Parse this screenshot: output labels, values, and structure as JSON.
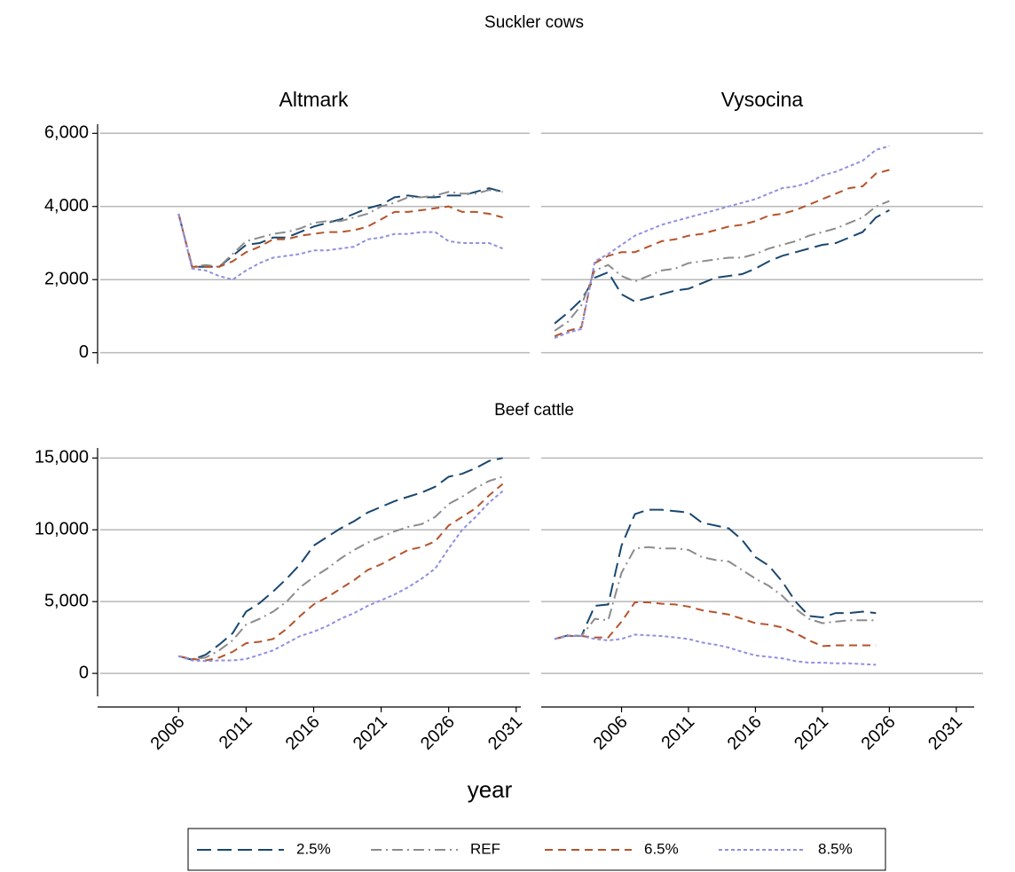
{
  "figure": {
    "rows": [
      "Suckler cows",
      "Beef cattle"
    ],
    "xlabel": "year",
    "legend_position": "bottom"
  },
  "chart_data": [
    {
      "type": "line",
      "title": "Altmark",
      "y_axis": true,
      "x_axis": false,
      "x": [
        2006,
        2007,
        2008,
        2009,
        2010,
        2011,
        2012,
        2013,
        2014,
        2015,
        2016,
        2017,
        2018,
        2019,
        2020,
        2021,
        2022,
        2023,
        2024,
        2025,
        2026,
        2027,
        2028,
        2029,
        2030
      ],
      "xlim": [
        2000,
        2032
      ],
      "ylim": [
        -300,
        6250
      ],
      "yticks": [
        0,
        {
          "value": 2000,
          "label": "2,000"
        },
        {
          "value": 4000,
          "label": "4,000"
        },
        {
          "value": 6000,
          "label": "6,000"
        }
      ],
      "grid": true,
      "series": [
        {
          "name": "2.5%",
          "color": "#1a476f",
          "dash": "long-dash",
          "values": [
            3800,
            2350,
            2350,
            2350,
            2650,
            2950,
            3000,
            3150,
            3150,
            3300,
            3450,
            3550,
            3650,
            3800,
            3950,
            4050,
            4250,
            4300,
            4250,
            4250,
            4300,
            4300,
            4400,
            4500,
            4400
          ]
        },
        {
          "name": "REF",
          "color": "#8c8c8c",
          "dash": "dash-dot",
          "values": [
            3800,
            2350,
            2400,
            2350,
            2700,
            3050,
            3150,
            3250,
            3300,
            3400,
            3550,
            3600,
            3600,
            3700,
            3800,
            4000,
            4100,
            4250,
            4250,
            4300,
            4400,
            4350,
            4350,
            4450,
            4400
          ]
        },
        {
          "name": "6.5%",
          "color": "#b5532b",
          "dash": "dash",
          "values": [
            3800,
            2350,
            2350,
            2350,
            2500,
            2750,
            2900,
            3100,
            3100,
            3200,
            3250,
            3300,
            3300,
            3350,
            3450,
            3650,
            3850,
            3850,
            3900,
            3950,
            4000,
            3850,
            3850,
            3800,
            3700
          ]
        },
        {
          "name": "8.5%",
          "color": "#9090e0",
          "dash": "short-dash",
          "values": [
            3800,
            2300,
            2250,
            2100,
            2000,
            2250,
            2450,
            2600,
            2650,
            2700,
            2800,
            2800,
            2850,
            2900,
            3100,
            3150,
            3250,
            3250,
            3300,
            3300,
            3050,
            3000,
            3000,
            3000,
            2850
          ]
        }
      ]
    },
    {
      "type": "line",
      "title": "Vysocina",
      "y_axis": false,
      "x_axis": false,
      "x": [
        2001,
        2002,
        2003,
        2004,
        2005,
        2006,
        2007,
        2008,
        2009,
        2010,
        2011,
        2012,
        2013,
        2014,
        2015,
        2016,
        2017,
        2018,
        2019,
        2020,
        2021,
        2022,
        2023,
        2024,
        2025,
        2026
      ],
      "xlim": [
        2000,
        2033
      ],
      "ylim": [
        -300,
        6250
      ],
      "yticks": [
        0,
        2000,
        4000,
        6000
      ],
      "grid": true,
      "series": [
        {
          "color": "#1a476f",
          "dash": "long-dash",
          "values": [
            800,
            1100,
            1450,
            2050,
            2200,
            1600,
            1400,
            1500,
            1600,
            1700,
            1750,
            1900,
            2050,
            2100,
            2150,
            2300,
            2500,
            2650,
            2750,
            2850,
            2950,
            3000,
            3150,
            3300,
            3700,
            3900
          ]
        },
        {
          "color": "#8c8c8c",
          "dash": "dash-dot",
          "values": [
            600,
            850,
            1300,
            2250,
            2400,
            2100,
            1950,
            2100,
            2250,
            2300,
            2450,
            2500,
            2550,
            2600,
            2600,
            2700,
            2850,
            2950,
            3050,
            3200,
            3300,
            3400,
            3550,
            3700,
            4000,
            4150
          ]
        },
        {
          "color": "#b5532b",
          "dash": "dash",
          "values": [
            450,
            600,
            700,
            2450,
            2650,
            2750,
            2750,
            2900,
            3050,
            3100,
            3200,
            3250,
            3350,
            3450,
            3500,
            3600,
            3750,
            3800,
            3900,
            4050,
            4200,
            4350,
            4500,
            4550,
            4900,
            5000
          ]
        },
        {
          "color": "#9090e0",
          "dash": "short-dash",
          "values": [
            400,
            550,
            650,
            2500,
            2700,
            2950,
            3200,
            3350,
            3500,
            3600,
            3700,
            3800,
            3900,
            4000,
            4100,
            4200,
            4350,
            4500,
            4550,
            4650,
            4850,
            4950,
            5100,
            5250,
            5550,
            5650
          ]
        }
      ]
    },
    {
      "type": "line",
      "y_axis": true,
      "x_axis": true,
      "x": [
        2006,
        2007,
        2008,
        2009,
        2010,
        2011,
        2012,
        2013,
        2014,
        2015,
        2016,
        2017,
        2018,
        2019,
        2020,
        2021,
        2022,
        2023,
        2024,
        2025,
        2026,
        2027,
        2028,
        2029,
        2030
      ],
      "xlim": [
        2000,
        2032
      ],
      "ylim": [
        -1600,
        15700
      ],
      "xticks": [
        2006,
        2011,
        2016,
        2021,
        2026,
        2031
      ],
      "yticks": [
        0,
        {
          "value": 5000,
          "label": "5,000"
        },
        {
          "value": 10000,
          "label": "10,000"
        },
        {
          "value": 15000,
          "label": "15,000"
        }
      ],
      "grid": true,
      "series": [
        {
          "color": "#1a476f",
          "dash": "long-dash",
          "values": [
            1200,
            950,
            1300,
            2000,
            2800,
            4300,
            4900,
            5700,
            6600,
            7600,
            8900,
            9500,
            10100,
            10600,
            11200,
            11600,
            12000,
            12300,
            12600,
            13000,
            13700,
            13900,
            14300,
            14800,
            15000
          ]
        },
        {
          "color": "#8c8c8c",
          "dash": "dash-dot",
          "values": [
            1200,
            1000,
            1100,
            1600,
            2300,
            3400,
            3800,
            4300,
            5000,
            6000,
            6700,
            7300,
            8000,
            8600,
            9100,
            9500,
            9900,
            10200,
            10400,
            10900,
            11800,
            12300,
            12900,
            13400,
            13700
          ]
        },
        {
          "color": "#b5532b",
          "dash": "dash",
          "values": [
            1200,
            1000,
            900,
            1100,
            1500,
            2100,
            2200,
            2400,
            3100,
            4000,
            4800,
            5300,
            5900,
            6500,
            7200,
            7600,
            8100,
            8600,
            8800,
            9200,
            10300,
            10900,
            11500,
            12400,
            13200
          ]
        },
        {
          "color": "#9090e0",
          "dash": "short-dash",
          "values": [
            1200,
            900,
            850,
            900,
            900,
            1000,
            1300,
            1600,
            2100,
            2600,
            2900,
            3300,
            3800,
            4200,
            4700,
            5100,
            5500,
            6000,
            6600,
            7300,
            8700,
            10000,
            10900,
            11900,
            12700
          ]
        }
      ]
    },
    {
      "type": "line",
      "y_axis": false,
      "x_axis": true,
      "x": [
        2001,
        2002,
        2003,
        2004,
        2005,
        2006,
        2007,
        2008,
        2009,
        2010,
        2011,
        2012,
        2013,
        2014,
        2015,
        2016,
        2017,
        2018,
        2019,
        2020,
        2021,
        2022,
        2023,
        2024,
        2025
      ],
      "xlim": [
        2000,
        2033
      ],
      "ylim": [
        -1600,
        15700
      ],
      "xticks": [
        2006,
        2011,
        2016,
        2021,
        2026,
        2031
      ],
      "yticks": [
        0,
        5000,
        10000,
        15000
      ],
      "grid": true,
      "series": [
        {
          "color": "#1a476f",
          "dash": "long-dash",
          "values": [
            2400,
            2650,
            2600,
            4700,
            4800,
            8900,
            11100,
            11400,
            11400,
            11300,
            11200,
            10500,
            10300,
            10100,
            9300,
            8100,
            7500,
            6400,
            5000,
            4000,
            3900,
            4200,
            4200,
            4300,
            4200
          ]
        },
        {
          "color": "#8c8c8c",
          "dash": "dash-dot",
          "values": [
            2400,
            2650,
            2600,
            3800,
            3700,
            7000,
            8700,
            8800,
            8700,
            8700,
            8600,
            8100,
            7900,
            7800,
            7200,
            6600,
            6100,
            5400,
            4500,
            3800,
            3500,
            3600,
            3700,
            3700,
            3700
          ]
        },
        {
          "color": "#b5532b",
          "dash": "dash",
          "values": [
            2400,
            2600,
            2600,
            2500,
            2500,
            3600,
            4950,
            4950,
            4850,
            4800,
            4650,
            4400,
            4250,
            4100,
            3800,
            3500,
            3400,
            3200,
            2800,
            2300,
            1900,
            1950,
            1950,
            1950,
            1950
          ]
        },
        {
          "color": "#9090e0",
          "dash": "short-dash",
          "values": [
            2400,
            2600,
            2600,
            2400,
            2300,
            2400,
            2700,
            2650,
            2600,
            2500,
            2400,
            2150,
            2000,
            1800,
            1500,
            1250,
            1150,
            1050,
            850,
            750,
            750,
            700,
            700,
            650,
            600
          ]
        }
      ]
    }
  ]
}
